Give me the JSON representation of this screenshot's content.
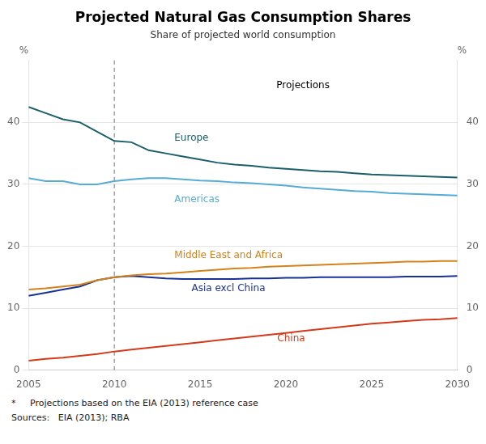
{
  "chart_data": {
    "type": "line",
    "title": "Projected Natural Gas Consumption Shares",
    "subtitle": "Share of projected world consumption",
    "ylabel": "%",
    "y2label": "%",
    "x": [
      2005,
      2006,
      2007,
      2008,
      2009,
      2010,
      2011,
      2012,
      2013,
      2014,
      2015,
      2016,
      2017,
      2018,
      2019,
      2020,
      2021,
      2022,
      2023,
      2024,
      2025,
      2026,
      2027,
      2028,
      2029,
      2030
    ],
    "xlim": [
      2005,
      2030
    ],
    "xticks": [
      2005,
      2010,
      2015,
      2020,
      2025,
      2030
    ],
    "ylim": [
      0,
      50
    ],
    "yticks": [
      0,
      10,
      20,
      30,
      40
    ],
    "y2lim": [
      0,
      50
    ],
    "y2ticks": [
      0,
      10,
      20,
      30,
      40
    ],
    "grid": "y",
    "vline": 2010,
    "annotations": [
      {
        "text": "Projections",
        "x": 2021,
        "y": 46
      }
    ],
    "footnotes": [
      "*     Projections based on the EIA (2013) reference case",
      "Sources:   EIA (2013); RBA"
    ],
    "series": [
      {
        "name": "Europe",
        "color": "#1a5f6a",
        "label": {
          "x": 2013.5,
          "y": 37.5
        },
        "values": [
          42.5,
          41.5,
          40.5,
          40.0,
          38.5,
          37.0,
          36.8,
          35.5,
          35.0,
          34.5,
          34.0,
          33.5,
          33.2,
          33.0,
          32.7,
          32.5,
          32.3,
          32.1,
          32.0,
          31.8,
          31.6,
          31.5,
          31.4,
          31.3,
          31.2,
          31.1
        ]
      },
      {
        "name": "Americas",
        "color": "#56acd4",
        "label": {
          "x": 2013.5,
          "y": 27.5
        },
        "values": [
          31.0,
          30.5,
          30.5,
          30.0,
          30.0,
          30.5,
          30.8,
          31.0,
          31.0,
          30.8,
          30.6,
          30.5,
          30.3,
          30.2,
          30.0,
          29.8,
          29.5,
          29.3,
          29.1,
          28.9,
          28.8,
          28.6,
          28.5,
          28.4,
          28.3,
          28.2
        ]
      },
      {
        "name": "Middle East and Africa",
        "color": "#d4831a",
        "label": {
          "x": 2013.5,
          "y": 18.5
        },
        "values": [
          13.0,
          13.2,
          13.5,
          13.8,
          14.5,
          15.0,
          15.3,
          15.5,
          15.6,
          15.8,
          16.0,
          16.2,
          16.4,
          16.5,
          16.7,
          16.8,
          16.9,
          17.0,
          17.1,
          17.2,
          17.3,
          17.4,
          17.5,
          17.5,
          17.6,
          17.6
        ]
      },
      {
        "name": "Asia excl China",
        "color": "#1a3099",
        "label": {
          "x": 2014.5,
          "y": 13.2
        },
        "values": [
          12.0,
          12.5,
          13.0,
          13.5,
          14.5,
          15.0,
          15.2,
          15.0,
          14.8,
          14.7,
          14.7,
          14.7,
          14.7,
          14.8,
          14.8,
          14.9,
          14.9,
          15.0,
          15.0,
          15.0,
          15.0,
          15.0,
          15.1,
          15.1,
          15.1,
          15.2
        ]
      },
      {
        "name": "China",
        "color": "#d43a1a",
        "label": {
          "x": 2019.5,
          "y": 5.0
        },
        "values": [
          1.5,
          1.8,
          2.0,
          2.3,
          2.6,
          3.0,
          3.3,
          3.6,
          3.9,
          4.2,
          4.5,
          4.8,
          5.1,
          5.4,
          5.7,
          6.0,
          6.3,
          6.6,
          6.9,
          7.2,
          7.5,
          7.7,
          7.9,
          8.1,
          8.2,
          8.4
        ]
      }
    ]
  }
}
